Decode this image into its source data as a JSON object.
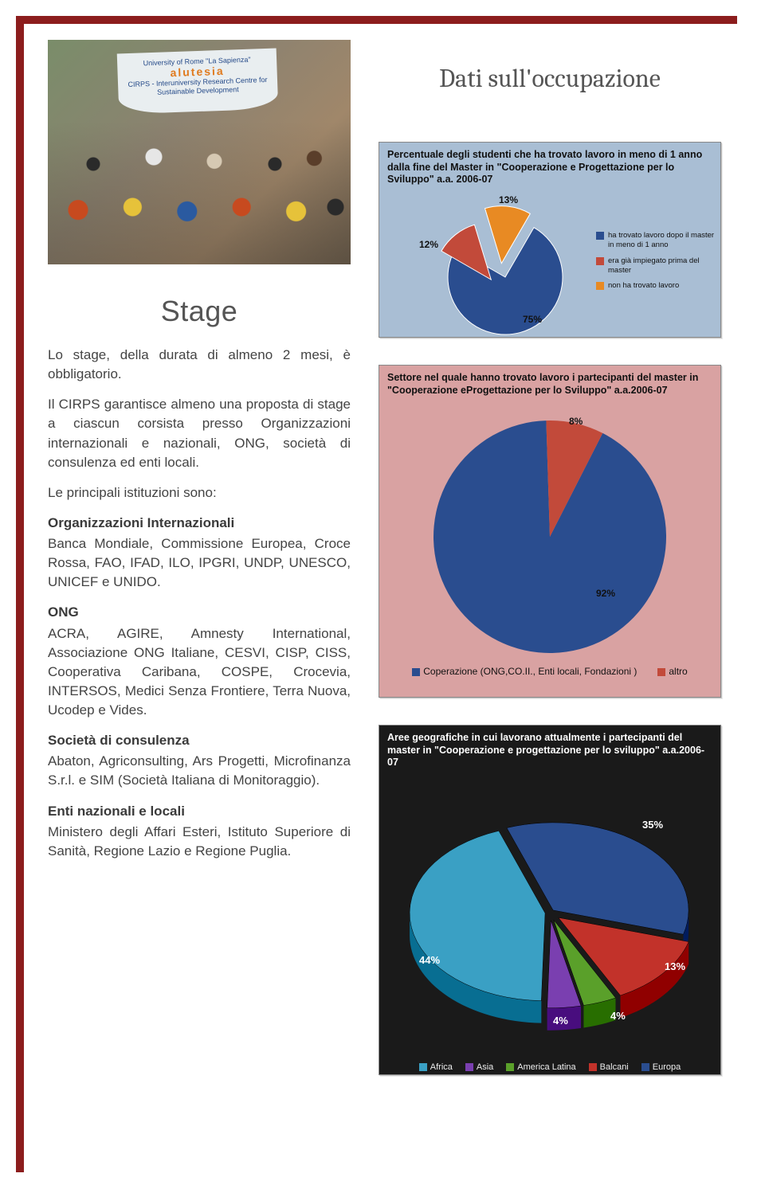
{
  "photo": {
    "banner_line1": "University of Rome \"La Sapienza\"",
    "banner_line2": "alutesia",
    "banner_line3": "CIRPS - Interuniversity Research Centre for",
    "banner_line4": "Sustainable Development"
  },
  "stage": {
    "heading": "Stage",
    "intro": "Lo stage, della durata di almeno 2 mesi, è obbligatorio.",
    "p2": "Il CIRPS garantisce almeno una proposta di stage a ciascun corsista presso Organizzazioni internazionali e nazionali, ONG, società di consulenza ed enti locali.",
    "p3": "Le principali istituzioni sono:",
    "sec_org_title": "Organizzazioni Internazionali",
    "sec_org_body": "Banca Mondiale, Commissione Europea, Croce Rossa, FAO, IFAD, ILO, IPGRI, UNDP, UNESCO, UNICEF e UNIDO.",
    "sec_ong_title": "ONG",
    "sec_ong_body": "ACRA, AGIRE, Amnesty International, Associazione ONG Italiane, CESVI, CISP, CISS, Cooperativa Caribana, COSPE, Crocevia, INTERSOS, Medici Senza Frontiere, Terra Nuova, Ucodep e Vides.",
    "sec_cons_title": "Società di consulenza",
    "sec_cons_body": "Abaton, Agriconsulting, Ars Progetti, Microfinanza S.r.l. e SIM (Società Italiana di Monitoraggio).",
    "sec_enti_title": "Enti nazionali e locali",
    "sec_enti_body": "Ministero degli Affari Esteri, Istituto Superiore di Sanità, Regione Lazio e Regione Puglia."
  },
  "right_title": "Dati sull'occupazione",
  "chart1": {
    "type": "pie",
    "title": "Percentuale degli studenti che ha trovato lavoro in meno di 1 anno dalla fine del Master in \"Cooperazione e Progettazione per lo Sviluppo\" a.a. 2006-07",
    "background_color": "#a9bed4",
    "slices": [
      {
        "label": "ha trovato lavoro dopo il master in meno di 1 anno",
        "value": 75,
        "color": "#2a4d8f",
        "explode": 0
      },
      {
        "label": "era già impiegato prima del master",
        "value": 12,
        "color": "#c24a3a",
        "explode": 18
      },
      {
        "label": "non ha trovato lavoro",
        "value": 13,
        "color": "#e88a23",
        "explode": 18
      }
    ],
    "value_labels": {
      "75": "75%",
      "12": "12%",
      "13": "13%"
    }
  },
  "chart2": {
    "type": "pie",
    "title": "Settore nel quale hanno trovato lavoro i partecipanti del master in \"Cooperazione eProgettazione per lo Sviluppo\" a.a.2006-07",
    "background_color": "#d9a2a2",
    "slices": [
      {
        "label": "Coperazione (ONG,CO.II., Enti locali, Fondazioni )",
        "value": 92,
        "color": "#2a4d8f"
      },
      {
        "label": "altro",
        "value": 8,
        "color": "#c24a3a"
      }
    ],
    "value_labels": {
      "92": "92%",
      "8": "8%"
    }
  },
  "chart3": {
    "type": "pie3d",
    "title": "Aree geografiche in cui lavorano attualmente i partecipanti del master in \"Cooperazione e progettazione per lo sviluppo\" a.a.2006-07",
    "background_color": "#1a1a1a",
    "slices": [
      {
        "label": "Africa",
        "value": 44,
        "color": "#3aa0c4"
      },
      {
        "label": "Asia",
        "value": 4,
        "color": "#7a3fb0"
      },
      {
        "label": "America Latina",
        "value": 4,
        "color": "#5aa02a"
      },
      {
        "label": "Balcani",
        "value": 13,
        "color": "#c2322a"
      },
      {
        "label": "Europa",
        "value": 35,
        "color": "#2a4d8f"
      }
    ],
    "value_labels": {
      "44": "44%",
      "4a": "4%",
      "4b": "4%",
      "13": "13%",
      "35": "35%"
    }
  }
}
